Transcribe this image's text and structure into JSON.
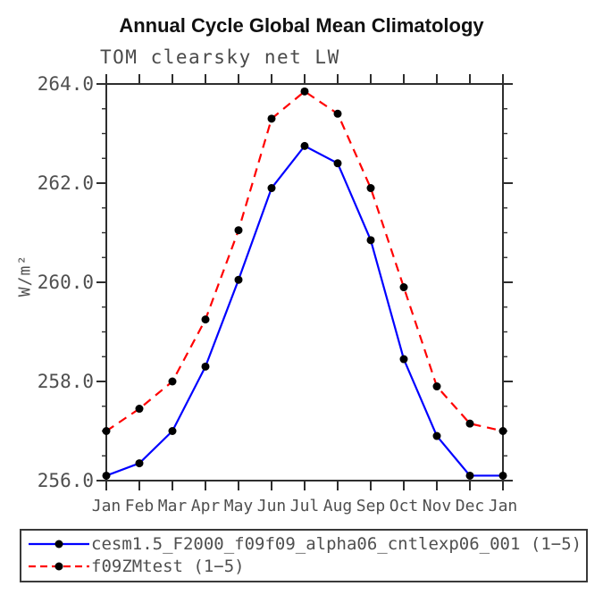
{
  "header": {
    "title": "Annual Cycle Global Mean Climatology",
    "subtitle": "TOM clearsky net LW"
  },
  "axes": {
    "y_label": "W/m²",
    "y_tick_labels": [
      "256.0",
      "258.0",
      "260.0",
      "262.0",
      "264.0"
    ],
    "x_tick_labels": [
      "Jan",
      "Feb",
      "Mar",
      "Apr",
      "May",
      "Jun",
      "Jul",
      "Aug",
      "Sep",
      "Oct",
      "Nov",
      "Dec",
      "Jan"
    ]
  },
  "colors": {
    "series1": "#0000ff",
    "series2": "#ff0000",
    "marker": "#000000",
    "axis": "#2e2e2e",
    "text": "#4f4f4f"
  },
  "chart_data": {
    "type": "line",
    "title": "Annual Cycle Global Mean Climatology",
    "subtitle": "TOM clearsky net LW",
    "xlabel": "",
    "ylabel": "W/m²",
    "ylim": [
      256.0,
      264.0
    ],
    "ytick_major": 2.0,
    "ytick_minor": 0.5,
    "grid": false,
    "legend_position": "bottom",
    "categories": [
      "Jan",
      "Feb",
      "Mar",
      "Apr",
      "May",
      "Jun",
      "Jul",
      "Aug",
      "Sep",
      "Oct",
      "Nov",
      "Dec",
      "Jan"
    ],
    "series": [
      {
        "name": "cesm1.5_F2000_f09f09_alpha06_cntlexp06_001",
        "label": "cesm1.5_F2000_f09f09_alpha06_cntlexp06_001 (1−5)",
        "color": "#0000ff",
        "line_style": "solid",
        "marker": "filled-circle",
        "marker_color": "#000000",
        "values": [
          256.1,
          256.35,
          257.0,
          258.3,
          260.05,
          261.9,
          262.75,
          262.4,
          260.85,
          258.45,
          256.9,
          256.1,
          256.1
        ]
      },
      {
        "name": "f09ZMtest",
        "label": "f09ZMtest (1−5)",
        "color": "#ff0000",
        "line_style": "dashed",
        "marker": "filled-circle",
        "marker_color": "#000000",
        "values": [
          257.0,
          257.45,
          258.0,
          259.25,
          261.05,
          263.3,
          263.85,
          263.4,
          261.9,
          259.9,
          257.9,
          257.15,
          257.0
        ]
      }
    ]
  }
}
